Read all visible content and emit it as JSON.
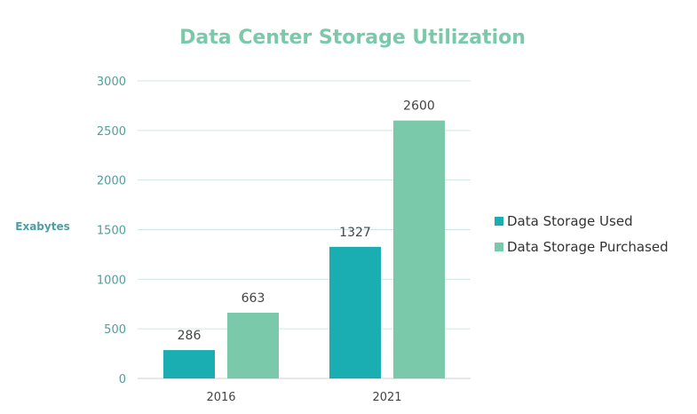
{
  "colors": {
    "used": "#1aaeb2",
    "purchased": "#7bc9ab",
    "title": "#7bc9ab",
    "axis_text": "#4f9ea3",
    "category_text": "#444444",
    "grid": "#d0e6e6",
    "axis_line": "#c8d0d0"
  },
  "chart_data": {
    "type": "bar",
    "title": "Data Center Storage Utilization",
    "xlabel": "",
    "ylabel": "Exabytes",
    "categories": [
      "2016",
      "2021"
    ],
    "series": [
      {
        "name": "Data Storage Used",
        "values": [
          286,
          1327
        ]
      },
      {
        "name": "Data Storage Purchased",
        "values": [
          663,
          2600
        ]
      }
    ],
    "ylim": [
      0,
      3000
    ],
    "yticks": [
      0,
      500,
      1000,
      1500,
      2000,
      2500,
      3000
    ],
    "grid": true,
    "legend_position": "right"
  }
}
